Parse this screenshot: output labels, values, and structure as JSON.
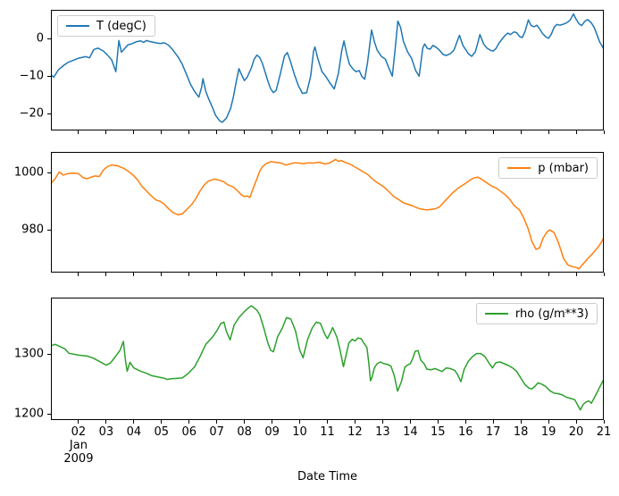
{
  "figure": {
    "background": "#ffffff",
    "text_color": "#000000"
  },
  "x_axis": {
    "label": "Date Time",
    "xlim": [
      1,
      21
    ],
    "tick_values": [
      2,
      3,
      4,
      5,
      6,
      7,
      8,
      9,
      10,
      11,
      12,
      13,
      14,
      15,
      16,
      17,
      18,
      19,
      20,
      21
    ],
    "tick_labels": [
      "02\nJan\n2009",
      "03",
      "04",
      "05",
      "06",
      "07",
      "08",
      "09",
      "10",
      "11",
      "12",
      "13",
      "14",
      "15",
      "16",
      "17",
      "18",
      "19",
      "20",
      "21"
    ]
  },
  "chart_data": [
    {
      "type": "line",
      "legend": "T (degC)",
      "legend_position": "upper-left",
      "color": "#1f77b4",
      "line_width": 1.5,
      "xlim": [
        1,
        21
      ],
      "ylim": [
        -24.5,
        7.7
      ],
      "ytick_values": [
        0,
        -10,
        -20
      ],
      "ytick_labels": [
        "0",
        "−10",
        "−20"
      ],
      "x": [
        1.0,
        1.1,
        1.27,
        1.45,
        1.6,
        1.8,
        2.0,
        2.25,
        2.4,
        2.55,
        2.7,
        2.9,
        3.05,
        3.2,
        3.35,
        3.46,
        3.55,
        3.65,
        3.78,
        3.95,
        4.1,
        4.25,
        4.35,
        4.45,
        4.6,
        4.8,
        4.95,
        5.1,
        5.25,
        5.4,
        5.6,
        5.75,
        5.9,
        6.05,
        6.2,
        6.35,
        6.45,
        6.5,
        6.6,
        6.72,
        6.85,
        6.95,
        7.1,
        7.2,
        7.35,
        7.5,
        7.6,
        7.7,
        7.8,
        7.9,
        8.0,
        8.1,
        8.25,
        8.35,
        8.45,
        8.55,
        8.65,
        8.75,
        8.85,
        8.95,
        9.05,
        9.15,
        9.3,
        9.45,
        9.55,
        9.65,
        9.8,
        9.95,
        10.1,
        10.25,
        10.4,
        10.5,
        10.55,
        10.65,
        10.8,
        10.95,
        11.1,
        11.25,
        11.4,
        11.52,
        11.6,
        11.7,
        11.8,
        11.95,
        12.05,
        12.15,
        12.25,
        12.35,
        12.45,
        12.6,
        12.7,
        12.8,
        12.95,
        13.1,
        13.2,
        13.35,
        13.45,
        13.55,
        13.65,
        13.75,
        13.9,
        14.05,
        14.2,
        14.32,
        14.45,
        14.52,
        14.62,
        14.72,
        14.82,
        14.95,
        15.05,
        15.18,
        15.3,
        15.45,
        15.58,
        15.7,
        15.78,
        15.9,
        16.0,
        16.1,
        16.22,
        16.35,
        16.45,
        16.52,
        16.65,
        16.77,
        16.9,
        17.0,
        17.1,
        17.2,
        17.3,
        17.42,
        17.52,
        17.62,
        17.75,
        17.85,
        17.95,
        18.05,
        18.15,
        18.27,
        18.37,
        18.48,
        18.58,
        18.68,
        18.78,
        18.9,
        19.0,
        19.1,
        19.2,
        19.3,
        19.42,
        19.55,
        19.67,
        19.78,
        19.9,
        20.0,
        20.1,
        20.2,
        20.32,
        20.42,
        20.55,
        20.65,
        20.75,
        20.85,
        20.95,
        21.0
      ],
      "values": [
        -9.6,
        -10.3,
        -8.3,
        -7.2,
        -6.4,
        -5.8,
        -5.2,
        -4.8,
        -5.1,
        -2.9,
        -2.5,
        -3.3,
        -4.4,
        -5.7,
        -8.8,
        -0.5,
        -3.6,
        -2.8,
        -1.7,
        -1.3,
        -0.8,
        -0.6,
        -1.0,
        -0.5,
        -0.8,
        -1.1,
        -1.3,
        -1.1,
        -1.7,
        -2.9,
        -4.9,
        -6.8,
        -9.5,
        -12.2,
        -14.1,
        -15.6,
        -13.0,
        -10.7,
        -14.0,
        -16.3,
        -18.5,
        -20.4,
        -21.9,
        -22.3,
        -21.2,
        -18.6,
        -15.5,
        -11.6,
        -8.0,
        -9.7,
        -11.2,
        -10.3,
        -7.8,
        -5.5,
        -4.4,
        -5.0,
        -6.6,
        -9.0,
        -11.4,
        -13.4,
        -14.4,
        -13.8,
        -9.3,
        -4.6,
        -3.7,
        -5.7,
        -9.4,
        -12.5,
        -14.6,
        -14.4,
        -9.9,
        -3.4,
        -2.2,
        -5.2,
        -8.7,
        -10.2,
        -11.9,
        -13.4,
        -9.2,
        -3.2,
        -0.6,
        -4.1,
        -6.9,
        -8.3,
        -8.8,
        -8.5,
        -10.1,
        -10.8,
        -6.5,
        2.3,
        -0.8,
        -3.0,
        -4.7,
        -5.5,
        -7.4,
        -10.0,
        -3.0,
        4.7,
        3.0,
        -0.7,
        -3.5,
        -5.3,
        -8.6,
        -10.0,
        -2.5,
        -1.4,
        -2.6,
        -2.8,
        -1.8,
        -2.4,
        -3.0,
        -4.2,
        -4.5,
        -4.0,
        -3.0,
        -0.6,
        0.9,
        -1.8,
        -2.9,
        -4.0,
        -4.7,
        -3.5,
        -0.9,
        1.1,
        -1.4,
        -2.5,
        -3.1,
        -3.3,
        -2.6,
        -1.3,
        -0.3,
        0.8,
        1.5,
        1.1,
        1.8,
        1.6,
        0.6,
        0.3,
        1.9,
        5.0,
        3.5,
        3.2,
        3.6,
        2.6,
        1.4,
        0.5,
        0.1,
        1.2,
        3.0,
        3.8,
        3.6,
        3.9,
        4.3,
        4.9,
        6.6,
        5.2,
        4.0,
        3.5,
        4.7,
        5.1,
        4.2,
        3.0,
        1.1,
        -0.9,
        -2.1,
        -2.8
      ]
    },
    {
      "type": "line",
      "legend": "p (mbar)",
      "legend_position": "upper-right",
      "color": "#ff7f0e",
      "line_width": 1.5,
      "xlim": [
        1,
        21
      ],
      "ylim": [
        965,
        1007.2
      ],
      "ytick_values": [
        1000,
        980
      ],
      "ytick_labels": [
        "1000",
        "980"
      ],
      "x": [
        1.0,
        1.15,
        1.3,
        1.45,
        1.6,
        1.8,
        2.0,
        2.15,
        2.3,
        2.45,
        2.6,
        2.75,
        2.9,
        3.05,
        3.2,
        3.4,
        3.65,
        3.8,
        4.0,
        4.15,
        4.3,
        4.45,
        4.6,
        4.8,
        4.95,
        5.1,
        5.25,
        5.4,
        5.6,
        5.75,
        5.9,
        6.1,
        6.25,
        6.4,
        6.55,
        6.7,
        6.9,
        7.1,
        7.25,
        7.4,
        7.6,
        7.75,
        7.9,
        8.0,
        8.1,
        8.2,
        8.3,
        8.45,
        8.55,
        8.65,
        8.8,
        8.95,
        9.1,
        9.3,
        9.5,
        9.65,
        9.8,
        10.0,
        10.15,
        10.3,
        10.5,
        10.7,
        10.9,
        11.05,
        11.2,
        11.3,
        11.4,
        11.5,
        11.65,
        11.8,
        11.95,
        12.1,
        12.3,
        12.45,
        12.6,
        12.75,
        12.95,
        13.1,
        13.25,
        13.4,
        13.6,
        13.75,
        13.9,
        14.1,
        14.25,
        14.4,
        14.6,
        14.75,
        14.9,
        15.05,
        15.2,
        15.35,
        15.5,
        15.7,
        15.85,
        16.0,
        16.15,
        16.3,
        16.45,
        16.6,
        16.8,
        16.95,
        17.1,
        17.3,
        17.45,
        17.6,
        17.75,
        17.95,
        18.1,
        18.25,
        18.4,
        18.55,
        18.68,
        18.8,
        18.95,
        19.05,
        19.2,
        19.35,
        19.45,
        19.55,
        19.7,
        19.85,
        20.0,
        20.1,
        20.25,
        20.4,
        20.55,
        20.75,
        20.9,
        21.0
      ],
      "values": [
        996.2,
        997.8,
        1000.2,
        999.1,
        999.6,
        999.8,
        999.6,
        998.3,
        997.8,
        998.4,
        998.8,
        998.6,
        1000.9,
        1002.1,
        1002.6,
        1002.4,
        1001.4,
        1000.4,
        998.9,
        997.2,
        995.1,
        993.6,
        992.1,
        990.4,
        989.9,
        988.9,
        987.4,
        986.1,
        985.2,
        985.5,
        986.9,
        988.9,
        991.0,
        993.6,
        995.7,
        997.0,
        997.7,
        997.3,
        996.8,
        995.7,
        994.9,
        993.6,
        992.1,
        991.6,
        991.8,
        991.3,
        994.0,
        997.8,
        1000.4,
        1002.0,
        1003.2,
        1003.8,
        1003.6,
        1003.4,
        1002.6,
        1003.0,
        1003.4,
        1003.3,
        1003.1,
        1003.4,
        1003.3,
        1003.6,
        1003.0,
        1003.2,
        1004.0,
        1004.6,
        1003.9,
        1004.2,
        1003.5,
        1003.0,
        1002.2,
        1001.4,
        1000.2,
        999.4,
        998.0,
        996.8,
        995.6,
        994.5,
        993.1,
        991.6,
        990.4,
        989.4,
        988.9,
        988.3,
        987.6,
        987.2,
        986.9,
        987.1,
        987.3,
        987.9,
        989.5,
        991.0,
        992.6,
        994.3,
        995.3,
        996.2,
        997.3,
        998.1,
        998.4,
        997.5,
        996.2,
        995.2,
        994.6,
        993.2,
        992.1,
        990.6,
        988.5,
        986.9,
        984.2,
        980.7,
        975.9,
        973.1,
        973.7,
        977.0,
        979.3,
        979.9,
        979.0,
        975.7,
        972.8,
        969.8,
        967.7,
        967.1,
        966.8,
        966.3,
        968.0,
        969.7,
        971.2,
        973.4,
        975.4,
        977.2
      ]
    },
    {
      "type": "line",
      "legend": "rho (g/m**3)",
      "legend_position": "upper-right",
      "color": "#2ca02c",
      "line_width": 1.5,
      "xlim": [
        1,
        21
      ],
      "ylim": [
        1190,
        1394.5
      ],
      "ytick_values": [
        1300,
        1200
      ],
      "ytick_labels": [
        "1300",
        "1200"
      ],
      "x": [
        1.0,
        1.15,
        1.3,
        1.5,
        1.65,
        2.0,
        2.3,
        2.5,
        2.75,
        3.0,
        3.15,
        3.3,
        3.5,
        3.62,
        3.7,
        3.76,
        3.86,
        4.0,
        4.25,
        4.45,
        4.65,
        4.9,
        5.1,
        5.2,
        5.35,
        5.55,
        5.75,
        5.95,
        6.2,
        6.4,
        6.6,
        6.85,
        7.0,
        7.15,
        7.26,
        7.35,
        7.48,
        7.63,
        7.8,
        8.0,
        8.18,
        8.25,
        8.45,
        8.55,
        8.7,
        8.85,
        8.95,
        9.05,
        9.2,
        9.37,
        9.52,
        9.68,
        9.85,
        10.0,
        10.12,
        10.28,
        10.45,
        10.6,
        10.75,
        10.9,
        11.0,
        11.1,
        11.19,
        11.35,
        11.45,
        11.58,
        11.78,
        11.9,
        12.0,
        12.1,
        12.22,
        12.3,
        12.43,
        12.5,
        12.56,
        12.62,
        12.7,
        12.8,
        12.92,
        13.05,
        13.18,
        13.3,
        13.42,
        13.54,
        13.68,
        13.8,
        13.9,
        14.0,
        14.08,
        14.18,
        14.28,
        14.38,
        14.5,
        14.6,
        14.75,
        14.9,
        15.05,
        15.15,
        15.3,
        15.45,
        15.6,
        15.7,
        15.83,
        15.95,
        16.1,
        16.25,
        16.4,
        16.55,
        16.7,
        16.85,
        16.97,
        17.1,
        17.25,
        17.4,
        17.55,
        17.7,
        17.85,
        18.0,
        18.15,
        18.3,
        18.4,
        18.5,
        18.62,
        18.75,
        18.9,
        19.05,
        19.2,
        19.35,
        19.5,
        19.65,
        19.8,
        19.95,
        20.08,
        20.15,
        20.25,
        20.35,
        20.45,
        20.55,
        20.7,
        20.85,
        21.0
      ],
      "values": [
        1314.0,
        1316.5,
        1313.4,
        1308.9,
        1301.5,
        1298.3,
        1296.9,
        1294.1,
        1288.0,
        1281.6,
        1285.1,
        1293.9,
        1306.6,
        1321.3,
        1288.0,
        1271.5,
        1286.5,
        1277.0,
        1271.5,
        1268.2,
        1264.1,
        1261.6,
        1259.9,
        1257.8,
        1258.9,
        1259.5,
        1260.3,
        1267.0,
        1279.0,
        1296.5,
        1316.3,
        1328.9,
        1338.9,
        1351.3,
        1353.6,
        1338.0,
        1323.9,
        1348.9,
        1361.1,
        1371.2,
        1378.6,
        1380.9,
        1373.5,
        1366.1,
        1343.9,
        1318.0,
        1306.5,
        1304.1,
        1328.9,
        1343.8,
        1361.1,
        1358.7,
        1338.8,
        1306.4,
        1294.1,
        1323.8,
        1343.8,
        1353.6,
        1351.3,
        1334.0,
        1326.0,
        1335.0,
        1344.5,
        1328.0,
        1309.0,
        1279.1,
        1318.8,
        1325.0,
        1322.0,
        1327.0,
        1326.0,
        1320.0,
        1311.0,
        1285.0,
        1255.6,
        1262.0,
        1277.0,
        1284.0,
        1287.0,
        1284.0,
        1283.0,
        1280.0,
        1264.0,
        1238.2,
        1254.1,
        1278.0,
        1282.0,
        1284.0,
        1292.0,
        1305.0,
        1306.0,
        1290.0,
        1284.0,
        1275.0,
        1274.0,
        1276.0,
        1273.0,
        1271.0,
        1277.0,
        1276.0,
        1273.0,
        1267.0,
        1254.1,
        1275.0,
        1288.0,
        1296.0,
        1301.0,
        1301.0,
        1296.0,
        1285.0,
        1277.0,
        1286.0,
        1287.0,
        1284.0,
        1281.0,
        1277.0,
        1271.0,
        1260.0,
        1249.0,
        1243.0,
        1242.0,
        1246.0,
        1252.0,
        1250.0,
        1246.0,
        1239.0,
        1235.0,
        1234.0,
        1232.0,
        1228.0,
        1226.0,
        1224.0,
        1213.0,
        1207.0,
        1216.0,
        1220.0,
        1222.0,
        1218.0,
        1231.0,
        1245.0,
        1258.0
      ]
    }
  ]
}
